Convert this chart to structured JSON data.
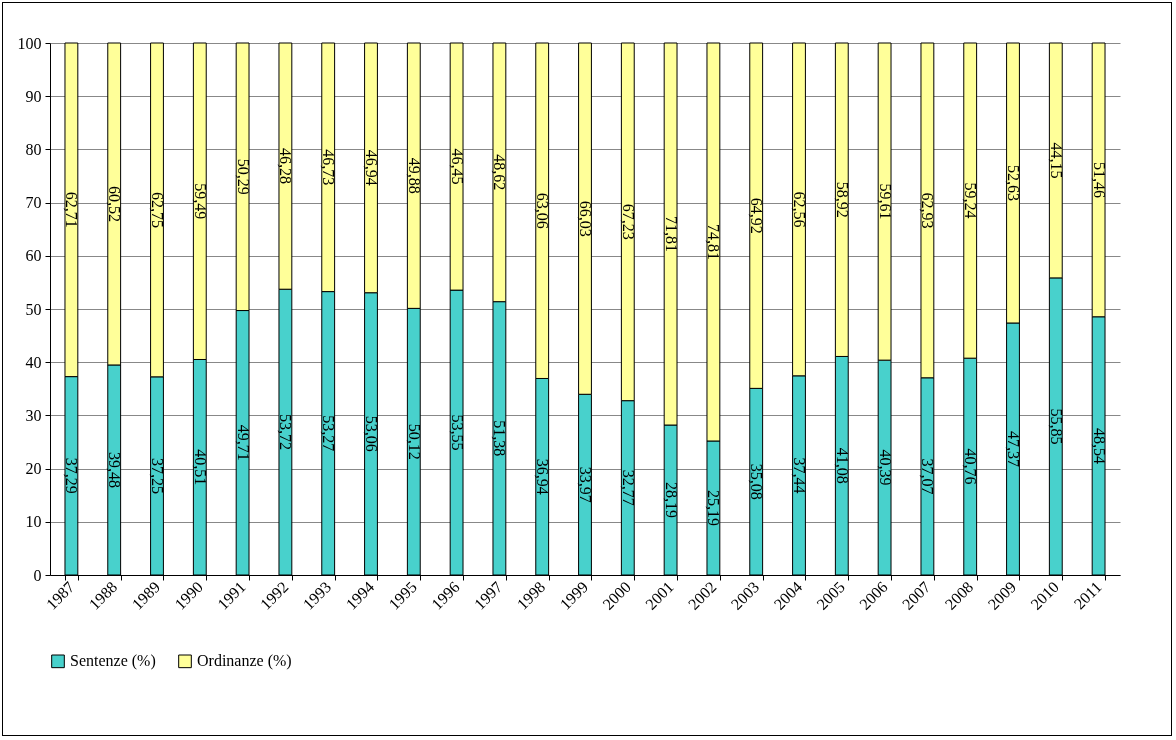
{
  "chart_data": {
    "type": "bar",
    "stacked": true,
    "categories": [
      "1987",
      "1988",
      "1989",
      "1990",
      "1991",
      "1992",
      "1993",
      "1994",
      "1995",
      "1996",
      "1997",
      "1998",
      "1999",
      "2000",
      "2001",
      "2002",
      "2003",
      "2004",
      "2005",
      "2006",
      "2007",
      "2008",
      "2009",
      "2010",
      "2011"
    ],
    "series": [
      {
        "name": "Sentenze (%)",
        "color": "#48d1cc",
        "values": [
          37.29,
          39.48,
          37.25,
          40.51,
          49.71,
          53.72,
          53.27,
          53.06,
          50.12,
          53.55,
          51.38,
          36.94,
          33.97,
          32.77,
          28.19,
          25.19,
          35.08,
          37.44,
          41.08,
          40.39,
          37.07,
          40.76,
          47.37,
          55.85,
          48.54
        ],
        "value_labels": [
          "37,29",
          "39,48",
          "37,25",
          "40,51",
          "49,71",
          "53,72",
          "53,27",
          "53,06",
          "50,12",
          "53,55",
          "51,38",
          "36,94",
          "33,97",
          "32,77",
          "28,19",
          "25,19",
          "35,08",
          "37,44",
          "41,08",
          "40,39",
          "37,07",
          "40,76",
          "47,37",
          "55,85",
          "48,54"
        ]
      },
      {
        "name": "Ordinanze (%)",
        "color": "#ffff99",
        "values": [
          62.71,
          60.52,
          62.75,
          59.49,
          50.29,
          46.28,
          46.73,
          46.94,
          49.88,
          46.45,
          48.62,
          63.06,
          66.03,
          67.23,
          71.81,
          74.81,
          64.92,
          62.56,
          58.92,
          59.61,
          62.93,
          59.24,
          52.63,
          44.15,
          51.46
        ],
        "value_labels": [
          "62,71",
          "60,52",
          "62,75",
          "59,49",
          "50,29",
          "46,28",
          "46,73",
          "46,94",
          "49,88",
          "46,45",
          "48,62",
          "63,06",
          "66,03",
          "67,23",
          "71,81",
          "74,81",
          "64,92",
          "62,56",
          "58,92",
          "59,61",
          "62,93",
          "59,24",
          "52,63",
          "44,15",
          "51,46"
        ]
      }
    ],
    "ylim": [
      0,
      100
    ],
    "yticks": [
      0,
      10,
      20,
      30,
      40,
      50,
      60,
      70,
      80,
      90,
      100
    ],
    "grid": "y",
    "legend": "bottom"
  }
}
